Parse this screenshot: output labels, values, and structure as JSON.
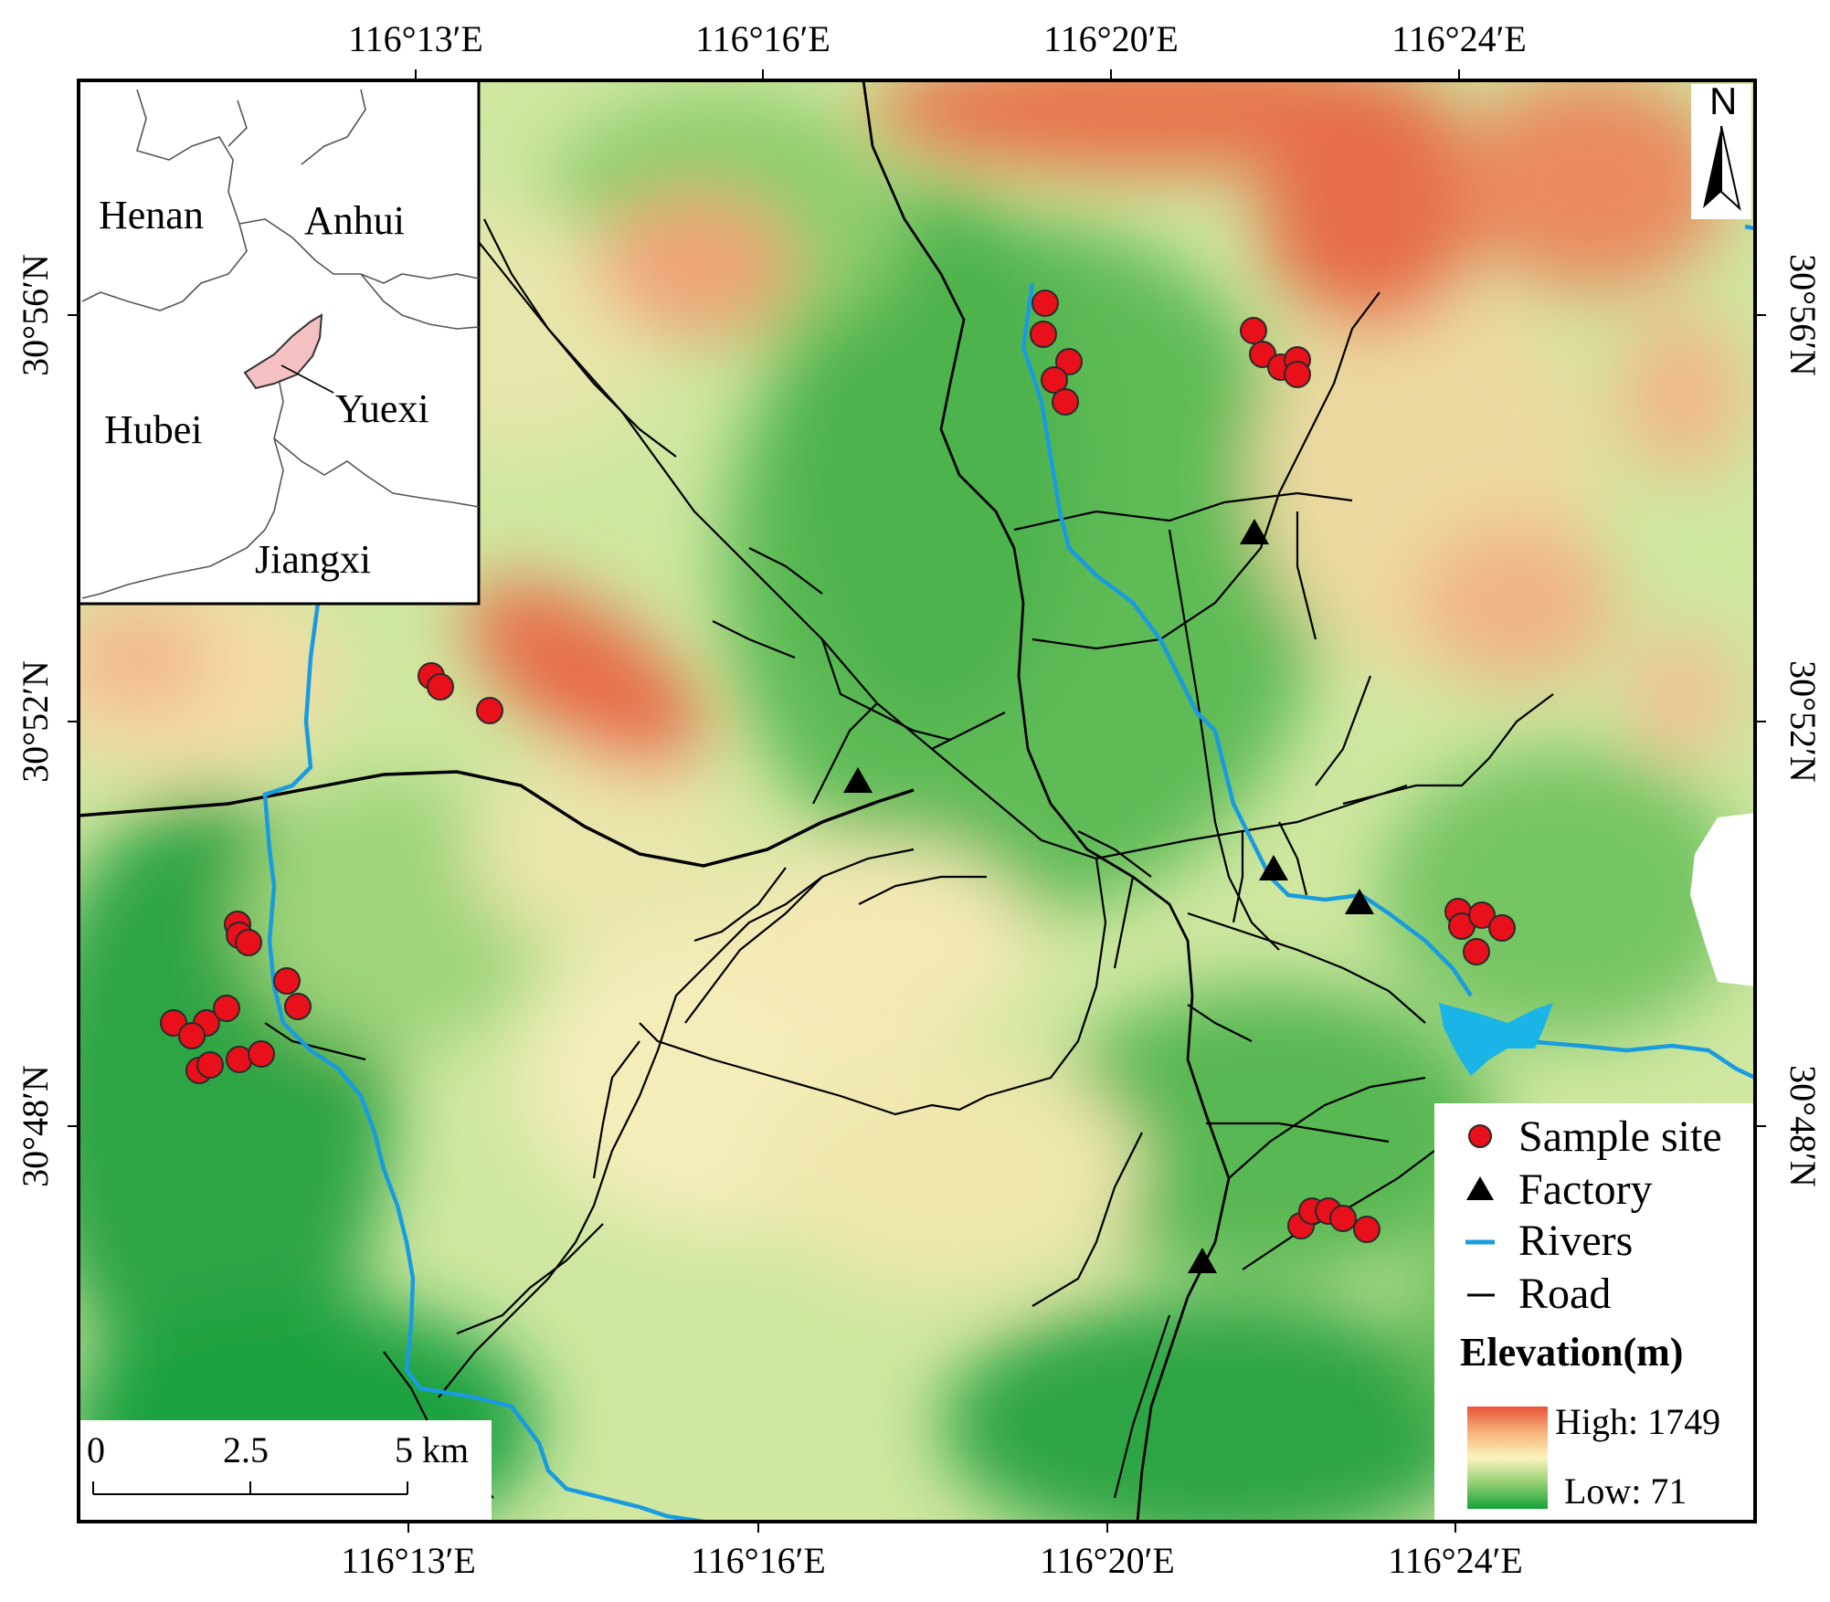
{
  "map": {
    "lon_ticks": [
      "116°13′E",
      "116°16′E",
      "116°20′E",
      "116°24′E"
    ],
    "lat_ticks": [
      "30°56′N",
      "30°52′N",
      "30°48′N"
    ],
    "inset": {
      "provinces": [
        "Henan",
        "Anhui",
        "Hubei",
        "Jiangxi"
      ],
      "study_area": "Yuexi"
    },
    "legend": {
      "items": [
        {
          "label": "Sample site",
          "symbol": "red-circle"
        },
        {
          "label": "Factory",
          "symbol": "black-triangle"
        },
        {
          "label": "Rivers",
          "symbol": "blue-line"
        },
        {
          "label": "Road",
          "symbol": "black-line"
        }
      ],
      "elevation_title": "Elevation(m)",
      "high_label": "High: 1749",
      "low_label": "Low: 71"
    },
    "scale_bar": {
      "labels": [
        "0",
        "2.5",
        "5 km"
      ]
    },
    "north_arrow": "N",
    "colors": {
      "sample_site": "#e8101a",
      "factory": "#000000",
      "river": "#1a9be0",
      "road": "#000000",
      "elevation_high": "#e8533a",
      "elevation_mid": "#fbf3bd",
      "elevation_low": "#13a23a"
    }
  }
}
